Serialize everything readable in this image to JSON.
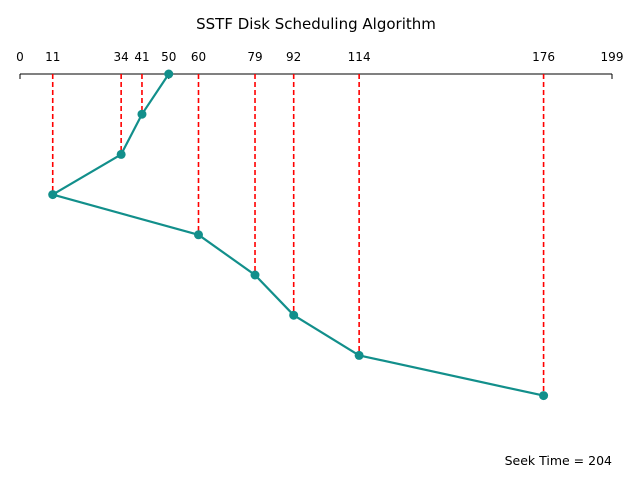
{
  "chart_data": {
    "type": "line",
    "title": "SSTF Disk Scheduling Algorithm",
    "xlim": [
      0,
      199
    ],
    "x_ticks": [
      0,
      11,
      34,
      41,
      50,
      60,
      79,
      92,
      114,
      176,
      199
    ],
    "sequence": [
      50,
      41,
      34,
      11,
      60,
      79,
      92,
      114,
      176
    ],
    "line_color": "#128f8b",
    "guide_color": "#ff0000",
    "footer_text": "Seek Time = 204"
  }
}
